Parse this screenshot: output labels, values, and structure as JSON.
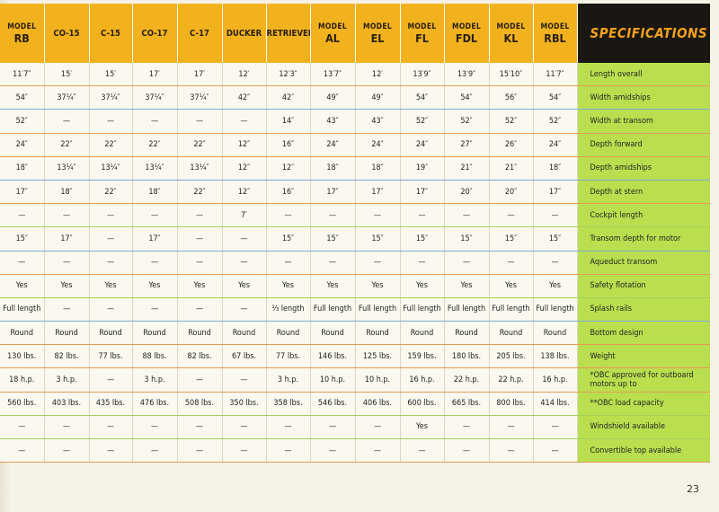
{
  "page_number": "23",
  "spec_title": "SPECIFICATIONS",
  "models": [
    {
      "top": "MODEL",
      "name": "RB"
    },
    {
      "top": "",
      "name": "CO-15"
    },
    {
      "top": "",
      "name": "C-15"
    },
    {
      "top": "",
      "name": "CO-17"
    },
    {
      "top": "",
      "name": "C-17"
    },
    {
      "top": "",
      "name": "DUCKER"
    },
    {
      "top": "",
      "name": "RETRIEVER"
    },
    {
      "top": "MODEL",
      "name": "AL"
    },
    {
      "top": "MODEL",
      "name": "EL"
    },
    {
      "top": "MODEL",
      "name": "FL"
    },
    {
      "top": "MODEL",
      "name": "FDL"
    },
    {
      "top": "MODEL",
      "name": "KL"
    },
    {
      "top": "MODEL",
      "name": "RBL"
    }
  ],
  "rows": [
    {
      "label": "Length overall",
      "values": [
        "11′7″",
        "15′",
        "15′",
        "17′",
        "17′",
        "12′",
        "12′3″",
        "13′7″",
        "12′",
        "13′9″",
        "13′9″",
        "15′10″",
        "11′7″"
      ]
    },
    {
      "label": "Width amidships",
      "values": [
        "54″",
        "37¼″",
        "37¼″",
        "37¼″",
        "37¼″",
        "42″",
        "42″",
        "49″",
        "49″",
        "54″",
        "54″",
        "56″",
        "54″"
      ]
    },
    {
      "label": "Width at transom",
      "values": [
        "52″",
        "—",
        "—",
        "—",
        "—",
        "—",
        "14″",
        "43″",
        "43″",
        "52″",
        "52″",
        "52″",
        "52″"
      ]
    },
    {
      "label": "Depth forward",
      "values": [
        "24″",
        "22″",
        "22″",
        "22″",
        "22″",
        "12″",
        "16″",
        "24″",
        "24″",
        "24″",
        "27″",
        "26″",
        "24″"
      ]
    },
    {
      "label": "Depth amidships",
      "values": [
        "18″",
        "13¼″",
        "13¼″",
        "13¼″",
        "13¼″",
        "12″",
        "12″",
        "18″",
        "18″",
        "19″",
        "21″",
        "21″",
        "18″"
      ]
    },
    {
      "label": "Depth at stern",
      "values": [
        "17″",
        "18″",
        "22″",
        "18″",
        "22″",
        "12″",
        "16″",
        "17″",
        "17″",
        "17″",
        "20″",
        "20″",
        "17″"
      ]
    },
    {
      "label": "Cockpit length",
      "values": [
        "—",
        "—",
        "—",
        "—",
        "—",
        "7′",
        "—",
        "—",
        "—",
        "—",
        "—",
        "—",
        "—"
      ]
    },
    {
      "label": "Transom depth for motor",
      "values": [
        "15″",
        "17″",
        "—",
        "17″",
        "—",
        "—",
        "15″",
        "15″",
        "15″",
        "15″",
        "15″",
        "15″",
        "15″"
      ]
    },
    {
      "label": "Aqueduct transom",
      "values": [
        "—",
        "—",
        "—",
        "—",
        "—",
        "—",
        "—",
        "—",
        "—",
        "—",
        "—",
        "—",
        "—"
      ]
    },
    {
      "label": "Safety flotation",
      "values": [
        "Yes",
        "Yes",
        "Yes",
        "Yes",
        "Yes",
        "Yes",
        "Yes",
        "Yes",
        "Yes",
        "Yes",
        "Yes",
        "Yes",
        "Yes"
      ]
    },
    {
      "label": "Splash rails",
      "values": [
        "Full length",
        "—",
        "—",
        "—",
        "—",
        "—",
        "⅓ length",
        "Full length",
        "Full length",
        "Full length",
        "Full length",
        "Full length",
        "Full length"
      ]
    },
    {
      "label": "Bottom design",
      "values": [
        "Round",
        "Round",
        "Round",
        "Round",
        "Round",
        "Round",
        "Round",
        "Round",
        "Round",
        "Round",
        "Round",
        "Round",
        "Round"
      ]
    },
    {
      "label": "Weight",
      "values": [
        "130 lbs.",
        "82 lbs.",
        "77 lbs.",
        "88 lbs.",
        "82 lbs.",
        "67 lbs.",
        "77 lbs.",
        "146 lbs.",
        "125 lbs.",
        "159 lbs.",
        "180 lbs.",
        "205 lbs.",
        "138 lbs."
      ]
    },
    {
      "label": "*OBC approved for outboard motors up to",
      "values": [
        "18 h.p.",
        "3 h.p.",
        "—",
        "3 h.p.",
        "—",
        "—",
        "3 h.p.",
        "10 h.p.",
        "10 h.p.",
        "16 h.p.",
        "22 h.p.",
        "22 h.p.",
        "16 h.p."
      ]
    },
    {
      "label": "**OBC load capacity",
      "values": [
        "560 lbs.",
        "403 lbs.",
        "435 lbs.",
        "476 lbs.",
        "508 lbs.",
        "350 lbs.",
        "358 lbs.",
        "546 lbs.",
        "406 lbs.",
        "600 lbs.",
        "665 lbs.",
        "800 lbs.",
        "414 lbs."
      ]
    },
    {
      "label": "Windshield available",
      "values": [
        "—",
        "—",
        "—",
        "—",
        "—",
        "—",
        "—",
        "—",
        "—",
        "Yes",
        "—",
        "—",
        "—"
      ]
    },
    {
      "label": "Convertible top available",
      "values": [
        "—",
        "—",
        "—",
        "—",
        "—",
        "—",
        "—",
        "—",
        "—",
        "—",
        "—",
        "—",
        "—"
      ]
    }
  ]
}
